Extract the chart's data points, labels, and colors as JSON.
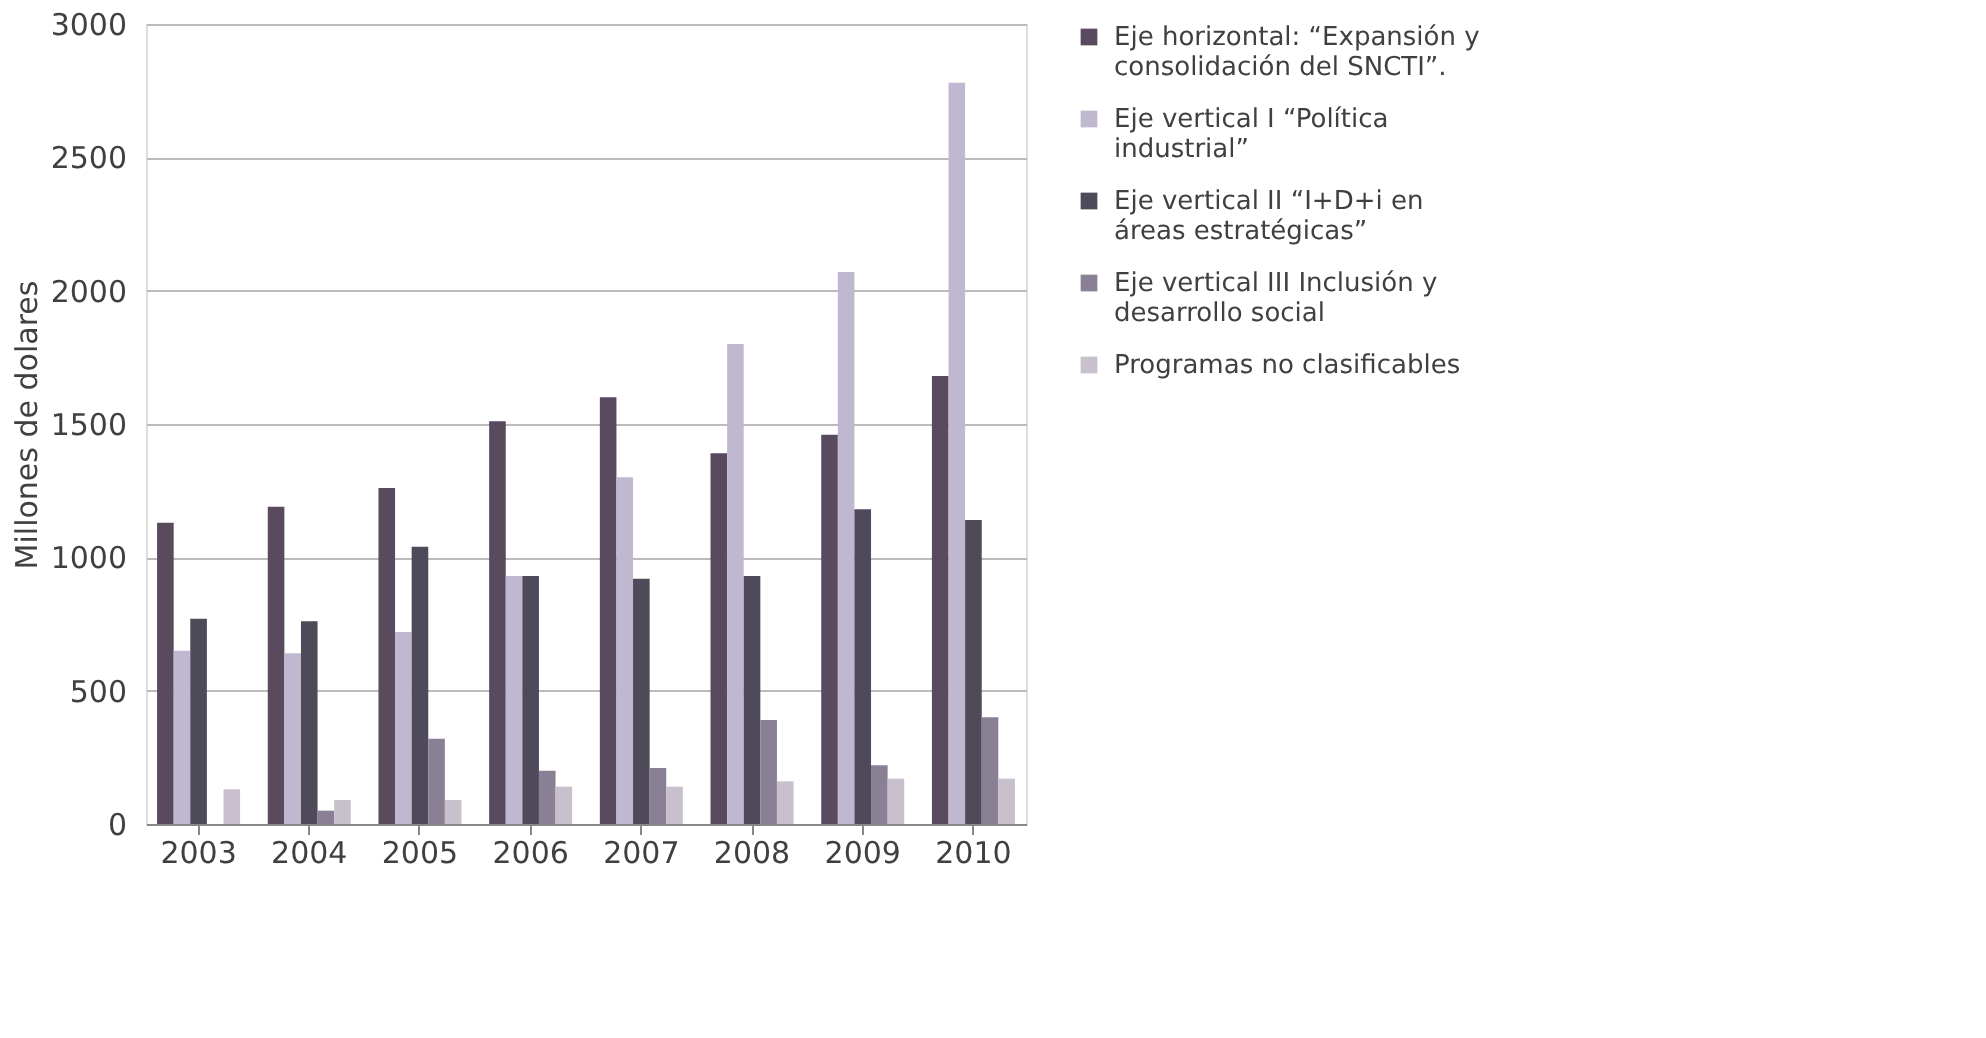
{
  "chart_data": {
    "type": "bar",
    "ylabel": "Millones de dolares",
    "categories": [
      "2003",
      "2004",
      "2005",
      "2006",
      "2007",
      "2008",
      "2009",
      "2010"
    ],
    "ylim": [
      0,
      3000
    ],
    "yticks": [
      0,
      500,
      1000,
      1500,
      2000,
      2500,
      3000
    ],
    "grid": "y",
    "legend": "right",
    "series": [
      {
        "name": "Eje horizontal: “Expansión y consolidación del SNCTI”.",
        "color": "#5a4a5e",
        "values": [
          1130,
          1190,
          1260,
          1510,
          1600,
          1390,
          1460,
          1680
        ]
      },
      {
        "name": "Eje vertical I “Política industrial”",
        "color": "#c0b8d0",
        "values": [
          650,
          640,
          720,
          930,
          1300,
          1800,
          2070,
          2780
        ]
      },
      {
        "name": "Eje vertical II “I+D+i en áreas estratégicas”",
        "color": "#4e4a5a",
        "values": [
          770,
          760,
          1040,
          930,
          920,
          930,
          1180,
          1140
        ]
      },
      {
        "name": "Eje vertical III Inclusión y desarrollo social",
        "color": "#8a8096",
        "values": [
          null,
          50,
          320,
          200,
          210,
          390,
          220,
          400
        ]
      },
      {
        "name": "Programas no clasificables",
        "color": "#c8c0cc",
        "values": [
          130,
          90,
          90,
          140,
          140,
          160,
          170,
          170
        ]
      }
    ]
  }
}
